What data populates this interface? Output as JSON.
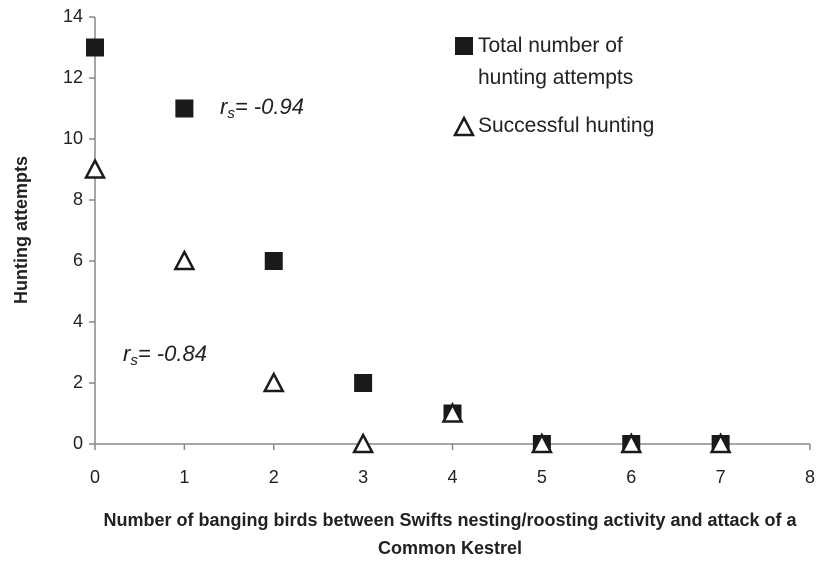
{
  "chart_data": {
    "type": "scatter",
    "xlabel": "Number of banging birds between Swifts nesting/roosting activity and attack of a Common Kestrel",
    "ylabel": "Hunting attempts",
    "series": [
      {
        "name": "Total number of hunting attempts",
        "color": "#1a1a1a",
        "marker": "square",
        "x": [
          0,
          1,
          2,
          3,
          4,
          5,
          6,
          7
        ],
        "values": [
          13,
          11,
          6,
          2,
          1,
          0,
          0,
          0
        ]
      },
      {
        "name": "Successful hunting",
        "color": "#1a1a1a",
        "marker": "triangle",
        "x": [
          0,
          1,
          2,
          3,
          4,
          5,
          6,
          7
        ],
        "values": [
          9,
          6,
          2,
          0,
          1,
          0,
          0,
          0
        ]
      }
    ],
    "annotations": [
      {
        "symbol": "r",
        "subscript": "s",
        "text": "= -0.94"
      },
      {
        "symbol": "r",
        "subscript": "s",
        "text": "= -0.84"
      }
    ],
    "xlim": [
      0,
      8
    ],
    "xticks": [
      0,
      1,
      2,
      3,
      4,
      5,
      6,
      7,
      8
    ],
    "ylim": [
      0,
      14
    ],
    "yticks": [
      0,
      2,
      4,
      6,
      8,
      10,
      12,
      14
    ],
    "grid": false
  }
}
